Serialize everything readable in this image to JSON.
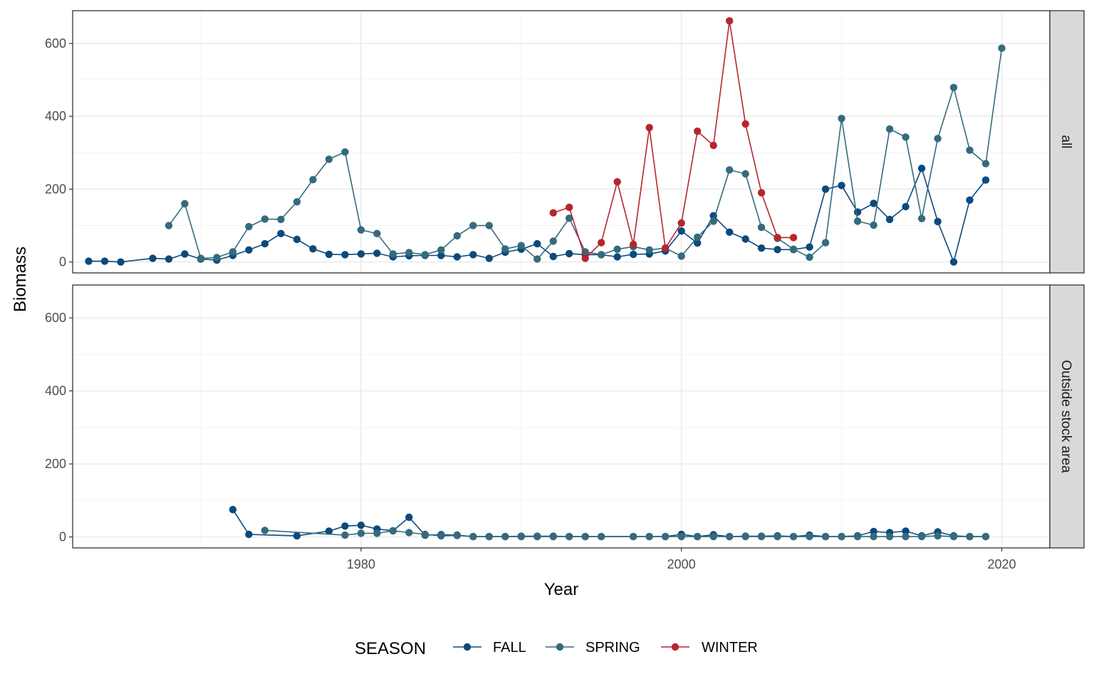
{
  "chart_data": {
    "type": "line",
    "xlabel": "Year",
    "ylabel": "Biomass",
    "xlim": [
      1962,
      2023
    ],
    "ylim": [
      -30,
      690
    ],
    "x_ticks": [
      1980,
      2000,
      2020
    ],
    "y_ticks": [
      0,
      200,
      400,
      600
    ],
    "legend": {
      "title": "SEASON",
      "position": "bottom",
      "entries": [
        "FALL",
        "SPRING",
        "WINTER"
      ]
    },
    "colors": {
      "FALL": "#0b4a7d",
      "SPRING": "#346b7d",
      "WINTER": "#b5262e"
    },
    "grid": true,
    "panels": [
      {
        "label": "all",
        "series": [
          {
            "name": "FALL",
            "points": [
              [
                1963,
                2
              ],
              [
                1964,
                2
              ],
              [
                1965,
                0
              ],
              [
                1967,
                10
              ],
              [
                1968,
                8
              ],
              [
                1969,
                22
              ],
              [
                1970,
                8
              ],
              [
                1971,
                5
              ],
              [
                1972,
                18
              ],
              [
                1973,
                33
              ],
              [
                1974,
                50
              ],
              [
                1975,
                78
              ],
              [
                1976,
                62
              ],
              [
                1977,
                36
              ],
              [
                1978,
                21
              ],
              [
                1979,
                20
              ],
              [
                1980,
                22
              ],
              [
                1981,
                24
              ],
              [
                1982,
                14
              ],
              [
                1983,
                17
              ],
              [
                1984,
                18
              ],
              [
                1985,
                18
              ],
              [
                1986,
                14
              ],
              [
                1987,
                20
              ],
              [
                1988,
                10
              ],
              [
                1989,
                27
              ],
              [
                1990,
                35
              ],
              [
                1991,
                50
              ],
              [
                1992,
                15
              ],
              [
                1993,
                23
              ],
              [
                1994,
                20
              ],
              [
                1995,
                20
              ],
              [
                1996,
                14
              ],
              [
                1997,
                21
              ],
              [
                1998,
                22
              ],
              [
                1999,
                30
              ],
              [
                2000,
                85
              ],
              [
                2001,
                52
              ],
              [
                2002,
                127
              ],
              [
                2003,
                82
              ],
              [
                2004,
                63
              ],
              [
                2005,
                38
              ],
              [
                2006,
                34
              ],
              [
                2007,
                34
              ],
              [
                2008,
                41
              ],
              [
                2009,
                200
              ],
              [
                2010,
                210
              ],
              [
                2011,
                137
              ],
              [
                2012,
                161
              ],
              [
                2013,
                117
              ],
              [
                2014,
                152
              ],
              [
                2015,
                257
              ],
              [
                2016,
                111
              ],
              [
                2017,
                0
              ],
              [
                2018,
                170
              ],
              [
                2019,
                225
              ]
            ]
          },
          {
            "name": "SPRING",
            "points": [
              [
                1968,
                100
              ],
              [
                1969,
                160
              ],
              [
                1970,
                10
              ],
              [
                1971,
                12
              ],
              [
                1972,
                28
              ],
              [
                1973,
                97
              ],
              [
                1974,
                118
              ],
              [
                1975,
                117
              ],
              [
                1976,
                165
              ],
              [
                1977,
                226
              ],
              [
                1978,
                282
              ],
              [
                1979,
                302
              ],
              [
                1980,
                88
              ],
              [
                1981,
                78
              ],
              [
                1982,
                22
              ],
              [
                1983,
                26
              ],
              [
                1984,
                20
              ],
              [
                1985,
                33
              ],
              [
                1986,
                72
              ],
              [
                1987,
                100
              ],
              [
                1988,
                100
              ],
              [
                1989,
                36
              ],
              [
                1990,
                45
              ],
              [
                1991,
                8
              ],
              [
                1992,
                57
              ],
              [
                1993,
                120
              ],
              [
                1994,
                28
              ],
              [
                1995,
                20
              ],
              [
                1996,
                35
              ],
              [
                1997,
                42
              ],
              [
                1998,
                33
              ],
              [
                1999,
                38
              ],
              [
                2000,
                16
              ],
              [
                2001,
                68
              ],
              [
                2002,
                112
              ],
              [
                2003,
                253
              ],
              [
                2004,
                242
              ],
              [
                2005,
                95
              ],
              [
                2006,
                65
              ],
              [
                2007,
                35
              ],
              [
                2008,
                13
              ],
              [
                2009,
                53
              ],
              [
                2010,
                394
              ],
              [
                2011,
                112
              ],
              [
                2012,
                101
              ],
              [
                2013,
                365
              ],
              [
                2014,
                343
              ],
              [
                2015,
                119
              ],
              [
                2016,
                339
              ],
              [
                2017,
                479
              ],
              [
                2018,
                307
              ],
              [
                2019,
                270
              ],
              [
                2020,
                587
              ]
            ]
          },
          {
            "name": "WINTER",
            "points": [
              [
                1992,
                135
              ],
              [
                1993,
                150
              ],
              [
                1994,
                10
              ],
              [
                1995,
                53
              ],
              [
                1996,
                220
              ],
              [
                1997,
                48
              ],
              [
                1998,
                369
              ],
              [
                1999,
                38
              ],
              [
                2000,
                107
              ],
              [
                2001,
                359
              ],
              [
                2002,
                320
              ],
              [
                2003,
                662
              ],
              [
                2004,
                379
              ],
              [
                2005,
                190
              ],
              [
                2006,
                67
              ],
              [
                2007,
                67
              ]
            ]
          }
        ]
      },
      {
        "label": "Outside stock area",
        "series": [
          {
            "name": "FALL",
            "points": [
              [
                1972,
                75
              ],
              [
                1973,
                7
              ],
              [
                1976,
                3
              ],
              [
                1978,
                16
              ],
              [
                1979,
                30
              ],
              [
                1980,
                32
              ],
              [
                1981,
                22
              ],
              [
                1982,
                17
              ],
              [
                1983,
                54
              ],
              [
                1984,
                5
              ],
              [
                1985,
                6
              ],
              [
                1986,
                5
              ],
              [
                1987,
                1
              ],
              [
                1988,
                1
              ],
              [
                1989,
                1
              ],
              [
                1990,
                2
              ],
              [
                1991,
                2
              ],
              [
                1992,
                2
              ],
              [
                1993,
                1
              ],
              [
                1994,
                1
              ],
              [
                1995,
                1
              ],
              [
                1997,
                1
              ],
              [
                1998,
                1
              ],
              [
                1999,
                1
              ],
              [
                2000,
                7
              ],
              [
                2001,
                1
              ],
              [
                2002,
                6
              ],
              [
                2003,
                1
              ],
              [
                2004,
                2
              ],
              [
                2005,
                2
              ],
              [
                2006,
                3
              ],
              [
                2007,
                1
              ],
              [
                2008,
                5
              ],
              [
                2009,
                1
              ],
              [
                2010,
                1
              ],
              [
                2011,
                3
              ],
              [
                2012,
                15
              ],
              [
                2013,
                12
              ],
              [
                2014,
                16
              ],
              [
                2015,
                3
              ],
              [
                2016,
                14
              ],
              [
                2017,
                3
              ],
              [
                2018,
                1
              ],
              [
                2019,
                1
              ]
            ]
          },
          {
            "name": "SPRING",
            "points": [
              [
                1974,
                18
              ],
              [
                1979,
                5
              ],
              [
                1980,
                10
              ],
              [
                1981,
                10
              ],
              [
                1982,
                17
              ],
              [
                1983,
                12
              ],
              [
                1984,
                7
              ],
              [
                1985,
                3
              ],
              [
                1986,
                4
              ],
              [
                1987,
                1
              ],
              [
                1988,
                1
              ],
              [
                1989,
                1
              ],
              [
                1990,
                1
              ],
              [
                1991,
                1
              ],
              [
                1992,
                1
              ],
              [
                1993,
                1
              ],
              [
                1994,
                1
              ],
              [
                1995,
                1
              ],
              [
                1997,
                1
              ],
              [
                1998,
                1
              ],
              [
                1999,
                1
              ],
              [
                2000,
                1
              ],
              [
                2001,
                1
              ],
              [
                2002,
                1
              ],
              [
                2003,
                1
              ],
              [
                2004,
                1
              ],
              [
                2005,
                1
              ],
              [
                2006,
                1
              ],
              [
                2007,
                1
              ],
              [
                2008,
                1
              ],
              [
                2009,
                1
              ],
              [
                2010,
                1
              ],
              [
                2011,
                1
              ],
              [
                2012,
                1
              ],
              [
                2013,
                1
              ],
              [
                2014,
                1
              ],
              [
                2015,
                1
              ],
              [
                2016,
                3
              ],
              [
                2017,
                1
              ],
              [
                2018,
                1
              ],
              [
                2019,
                1
              ]
            ]
          }
        ]
      }
    ]
  }
}
